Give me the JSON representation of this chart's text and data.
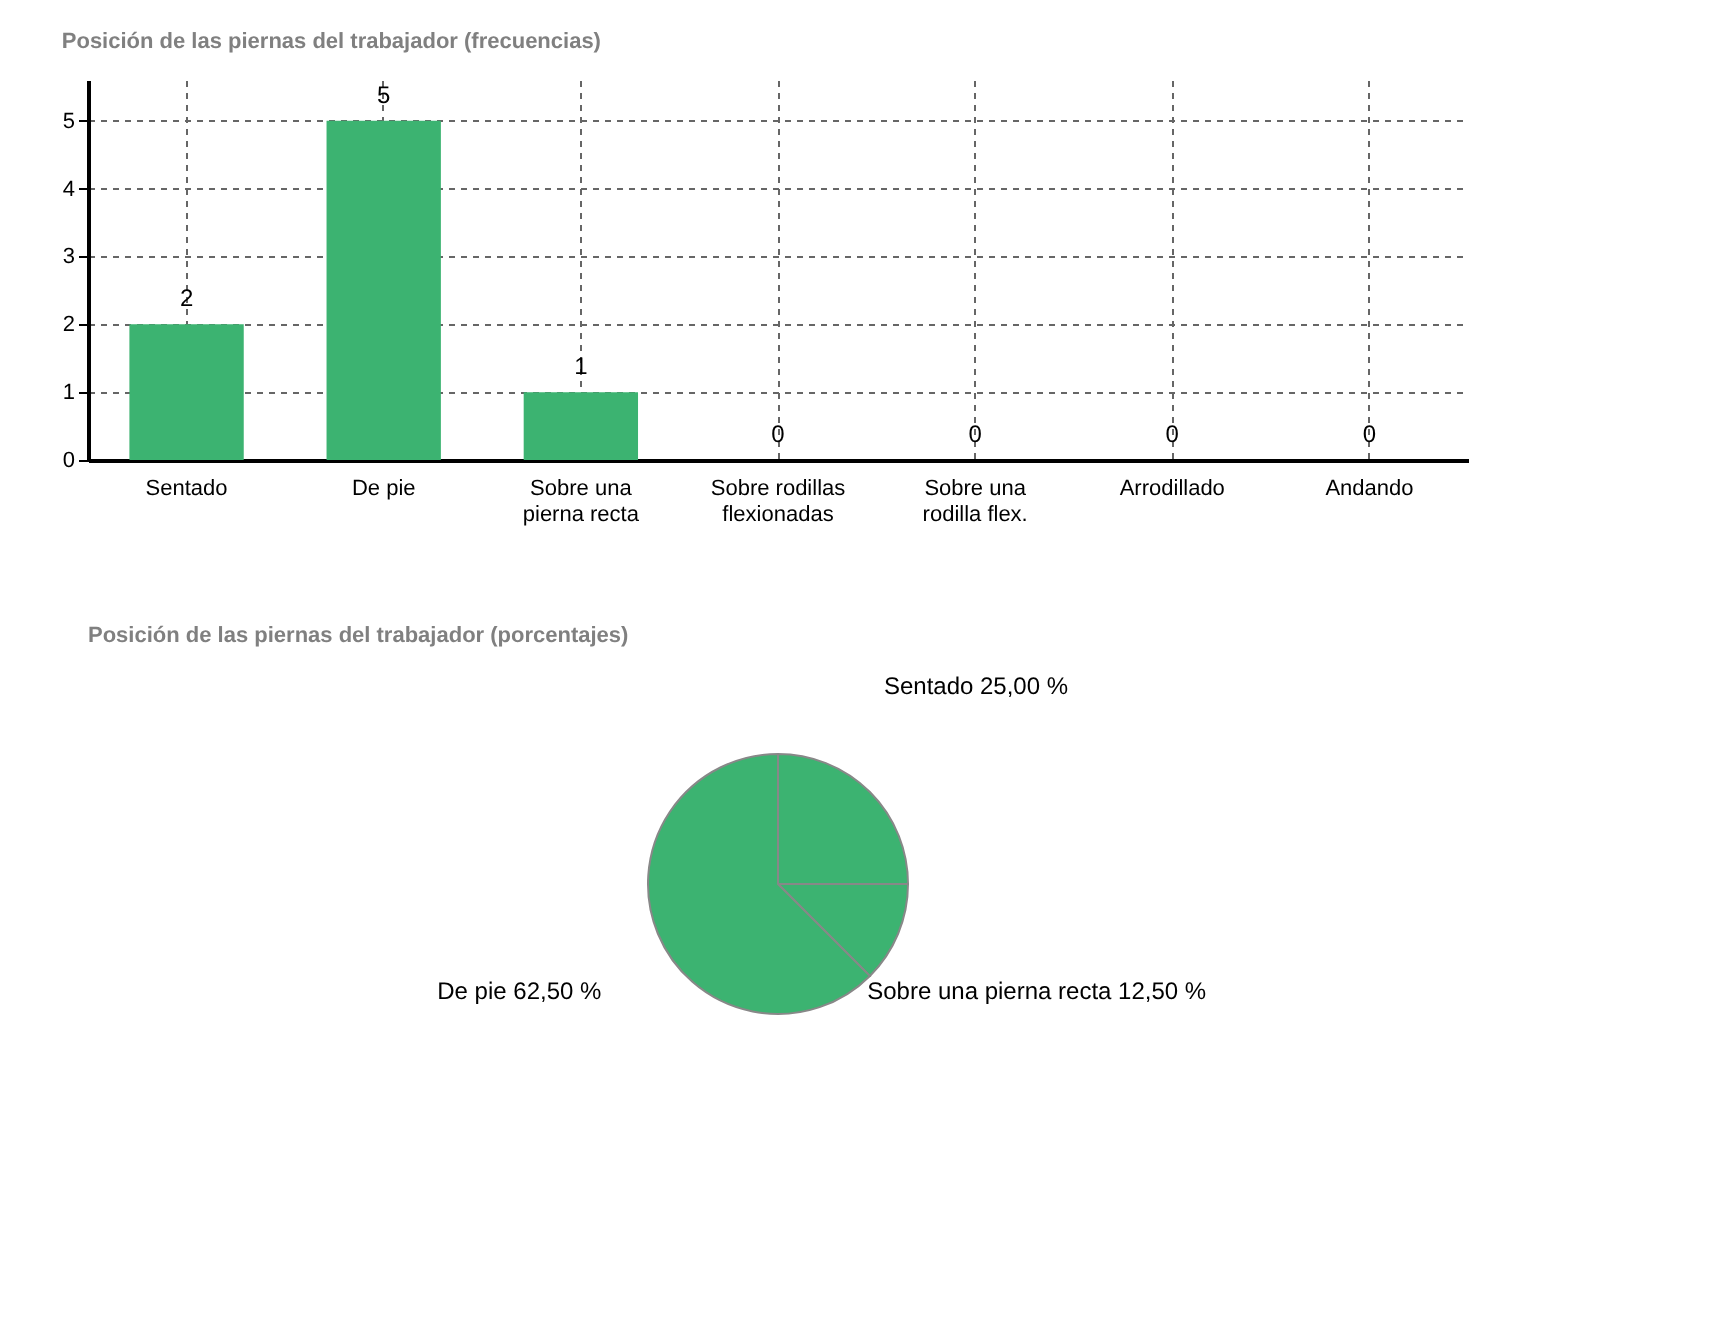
{
  "chart_data": [
    {
      "type": "bar",
      "title": "Posición de las piernas del trabajador (frecuencias)",
      "categories": [
        "Sentado",
        "De pie",
        "Sobre una pierna recta",
        "Sobre rodillas flexionadas",
        "Sobre una rodilla flex.",
        "Arrodillado",
        "Andando"
      ],
      "values": [
        2,
        5,
        1,
        0,
        0,
        0,
        0
      ],
      "color": "#3cb371",
      "ylim": [
        0,
        5.6
      ],
      "yticks": [
        0,
        1,
        2,
        3,
        4,
        5
      ],
      "grid": true,
      "data_labels": true
    },
    {
      "type": "pie",
      "title": "Posición de las piernas del trabajador (porcentajes)",
      "categories": [
        "Sentado",
        "Sobre una pierna recta",
        "De pie"
      ],
      "values": [
        25,
        12.5,
        62.5
      ],
      "colors": [
        "#3cb371",
        "#3cb371",
        "#3cb371"
      ],
      "value_labels": [
        "25,00 %",
        "12,50 %",
        "62,50 %"
      ]
    }
  ]
}
